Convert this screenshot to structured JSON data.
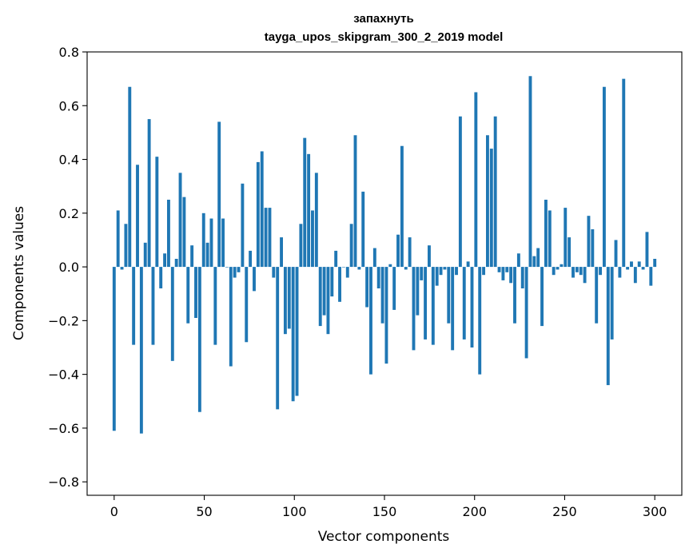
{
  "chart_data": {
    "type": "bar",
    "title": "запахнуть",
    "subtitle": "tayga_upos_skipgram_300_2_2019 model",
    "xlabel": "Vector components",
    "ylabel": "Components values",
    "xlim": [
      -15,
      315
    ],
    "ylim": [
      -0.85,
      0.8
    ],
    "xticks": [
      0,
      50,
      100,
      150,
      200,
      250,
      300
    ],
    "yticks": [
      -0.8,
      -0.6,
      -0.4,
      -0.2,
      0.0,
      0.2,
      0.4,
      0.6,
      0.8
    ],
    "xtick_labels": [
      "0",
      "50",
      "100",
      "150",
      "200",
      "250",
      "300"
    ],
    "ytick_labels": [
      "−0.8",
      "−0.6",
      "−0.4",
      "−0.2",
      "0.0",
      "0.2",
      "0.4",
      "0.6",
      "0.8"
    ],
    "bar_color": "#1f77b4",
    "values": [
      -0.61,
      0.21,
      -0.01,
      0.16,
      0.67,
      -0.29,
      0.38,
      -0.62,
      0.09,
      0.55,
      -0.29,
      0.41,
      -0.08,
      0.05,
      0.25,
      -0.35,
      0.03,
      0.35,
      0.26,
      -0.21,
      0.08,
      -0.19,
      -0.54,
      0.2,
      0.09,
      0.18,
      -0.29,
      0.54,
      0.18,
      0.0,
      -0.37,
      -0.04,
      -0.02,
      0.31,
      -0.28,
      0.06,
      -0.09,
      0.39,
      0.43,
      0.22,
      0.22,
      -0.04,
      -0.53,
      0.11,
      -0.25,
      -0.23,
      -0.5,
      -0.48,
      0.16,
      0.48,
      0.42,
      0.21,
      0.35,
      -0.22,
      -0.18,
      -0.25,
      -0.11,
      0.06,
      -0.13,
      0.0,
      -0.04,
      0.16,
      0.49,
      -0.01,
      0.28,
      -0.15,
      -0.4,
      0.07,
      -0.08,
      -0.21,
      -0.36,
      0.01,
      -0.16,
      0.12,
      0.45,
      -0.01,
      0.11,
      -0.31,
      -0.18,
      -0.05,
      -0.27,
      0.08,
      -0.29,
      -0.07,
      -0.03,
      -0.01,
      -0.21,
      -0.31,
      -0.03,
      0.56,
      -0.27,
      0.02,
      -0.3,
      0.65,
      -0.4,
      -0.03,
      0.49,
      0.44,
      0.56,
      -0.02,
      -0.05,
      -0.02,
      -0.06,
      -0.21,
      0.05,
      -0.08,
      -0.34,
      0.71,
      0.04,
      0.07,
      -0.22,
      0.25,
      0.21,
      -0.03,
      -0.01,
      0.01,
      0.22,
      0.11,
      -0.04,
      -0.02,
      -0.03,
      -0.06,
      0.19,
      0.14,
      -0.21,
      -0.03,
      0.67,
      -0.44,
      -0.27,
      0.1,
      -0.04,
      0.7,
      -0.01,
      0.02,
      -0.06,
      0.02,
      -0.01,
      0.13,
      -0.07,
      0.03
    ]
  }
}
